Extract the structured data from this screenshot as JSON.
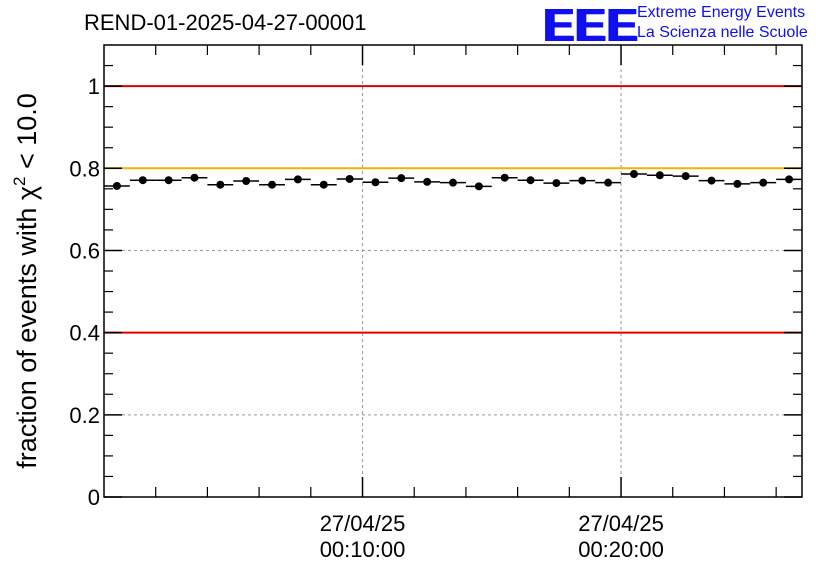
{
  "header": {
    "run_title": "REND-01-2025-04-27-00001",
    "logo_text": "EEE",
    "logo_line1": "Extreme Energy Events",
    "logo_line2": "La Scienza nelle Scuole",
    "logo_color": "#1010ee"
  },
  "chart_data": {
    "type": "scatter",
    "title": "REND-01-2025-04-27-00001",
    "xlabel": "",
    "ylabel": "fraction of events with χ² < 10.0",
    "ylabel_parts": {
      "pre": "fraction of events with χ",
      "sup": "2",
      "post": " < 10.0"
    },
    "xlim": [
      0,
      27
    ],
    "ylim": [
      0,
      1.1
    ],
    "yticks": [
      {
        "v": 0,
        "label": "0"
      },
      {
        "v": 0.2,
        "label": "0.2"
      },
      {
        "v": 0.4,
        "label": "0.4"
      },
      {
        "v": 0.6,
        "label": "0.6"
      },
      {
        "v": 0.8,
        "label": "0.8"
      },
      {
        "v": 1,
        "label": "1"
      }
    ],
    "xtick_major": [
      {
        "v": 10,
        "line1": "27/04/25",
        "line2": "00:10:00"
      },
      {
        "v": 20,
        "line1": "27/04/25",
        "line2": "00:20:00"
      }
    ],
    "xtick_minor_step": 2,
    "grid": true,
    "reference_lines": [
      {
        "value": 1.0,
        "color": "#dd0000"
      },
      {
        "value": 0.8,
        "color": "#f0b400"
      },
      {
        "value": 0.4,
        "color": "#dd0000"
      }
    ],
    "bin_half_width": 0.5,
    "x": [
      0.5,
      1.5,
      2.5,
      3.5,
      4.5,
      5.5,
      6.5,
      7.5,
      8.5,
      9.5,
      10.5,
      11.5,
      12.5,
      13.5,
      14.5,
      15.5,
      16.5,
      17.5,
      18.5,
      19.5,
      20.5,
      21.5,
      22.5,
      23.5,
      24.5,
      25.5,
      26.5
    ],
    "values": [
      0.757,
      0.771,
      0.771,
      0.777,
      0.76,
      0.769,
      0.76,
      0.773,
      0.76,
      0.774,
      0.766,
      0.776,
      0.767,
      0.765,
      0.756,
      0.777,
      0.771,
      0.764,
      0.77,
      0.765,
      0.786,
      0.783,
      0.781,
      0.77,
      0.762,
      0.765,
      0.773
    ],
    "errors": [
      0.006,
      0.006,
      0.006,
      0.006,
      0.006,
      0.006,
      0.006,
      0.006,
      0.006,
      0.006,
      0.006,
      0.006,
      0.006,
      0.006,
      0.006,
      0.006,
      0.006,
      0.006,
      0.006,
      0.006,
      0.006,
      0.006,
      0.006,
      0.006,
      0.006,
      0.006,
      0.006
    ]
  }
}
